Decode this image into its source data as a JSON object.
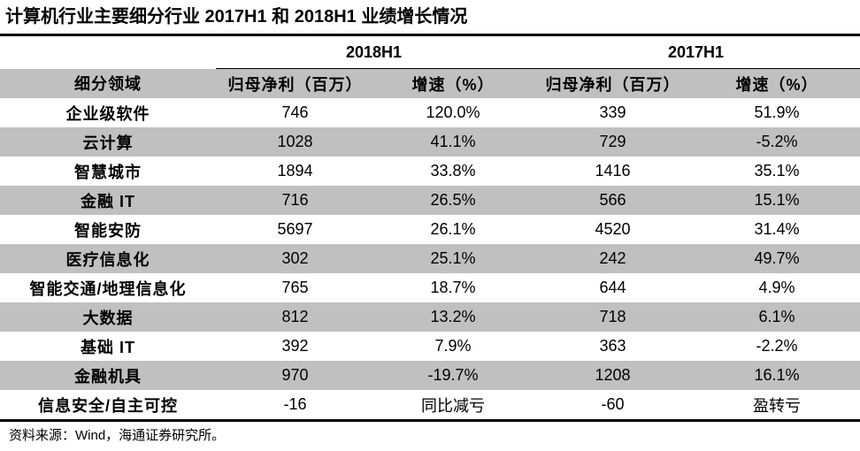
{
  "title": "计算机行业主要细分行业 2017H1 和 2018H1 业绩增长情况",
  "periods": [
    "2018H1",
    "2017H1"
  ],
  "headers": {
    "segment": "细分领域",
    "net_profit": "归母净利（百万）",
    "growth": "增速（%）"
  },
  "rows": [
    {
      "segment": "企业级软件",
      "p2018": "746",
      "g2018": "120.0%",
      "p2017": "339",
      "g2017": "51.9%"
    },
    {
      "segment": "云计算",
      "p2018": "1028",
      "g2018": "41.1%",
      "p2017": "729",
      "g2017": "-5.2%"
    },
    {
      "segment": "智慧城市",
      "p2018": "1894",
      "g2018": "33.8%",
      "p2017": "1416",
      "g2017": "35.1%"
    },
    {
      "segment": "金融 IT",
      "p2018": "716",
      "g2018": "26.5%",
      "p2017": "566",
      "g2017": "15.1%"
    },
    {
      "segment": "智能安防",
      "p2018": "5697",
      "g2018": "26.1%",
      "p2017": "4520",
      "g2017": "31.4%"
    },
    {
      "segment": "医疗信息化",
      "p2018": "302",
      "g2018": "25.1%",
      "p2017": "242",
      "g2017": "49.7%"
    },
    {
      "segment": "智能交通/地理信息化",
      "p2018": "765",
      "g2018": "18.7%",
      "p2017": "644",
      "g2017": "4.9%"
    },
    {
      "segment": "大数据",
      "p2018": "812",
      "g2018": "13.2%",
      "p2017": "718",
      "g2017": "6.1%"
    },
    {
      "segment": "基础 IT",
      "p2018": "392",
      "g2018": "7.9%",
      "p2017": "363",
      "g2017": "-2.2%"
    },
    {
      "segment": "金融机具",
      "p2018": "970",
      "g2018": "-19.7%",
      "p2017": "1208",
      "g2017": "16.1%"
    },
    {
      "segment": "信息安全/自主可控",
      "p2018": "-16",
      "g2018": "同比减亏",
      "p2017": "-60",
      "g2017": "盈转亏"
    }
  ],
  "source": "资料来源：Wind，海通证券研究所。",
  "colors": {
    "shade": "#c0c0c0",
    "rule": "#000000"
  }
}
